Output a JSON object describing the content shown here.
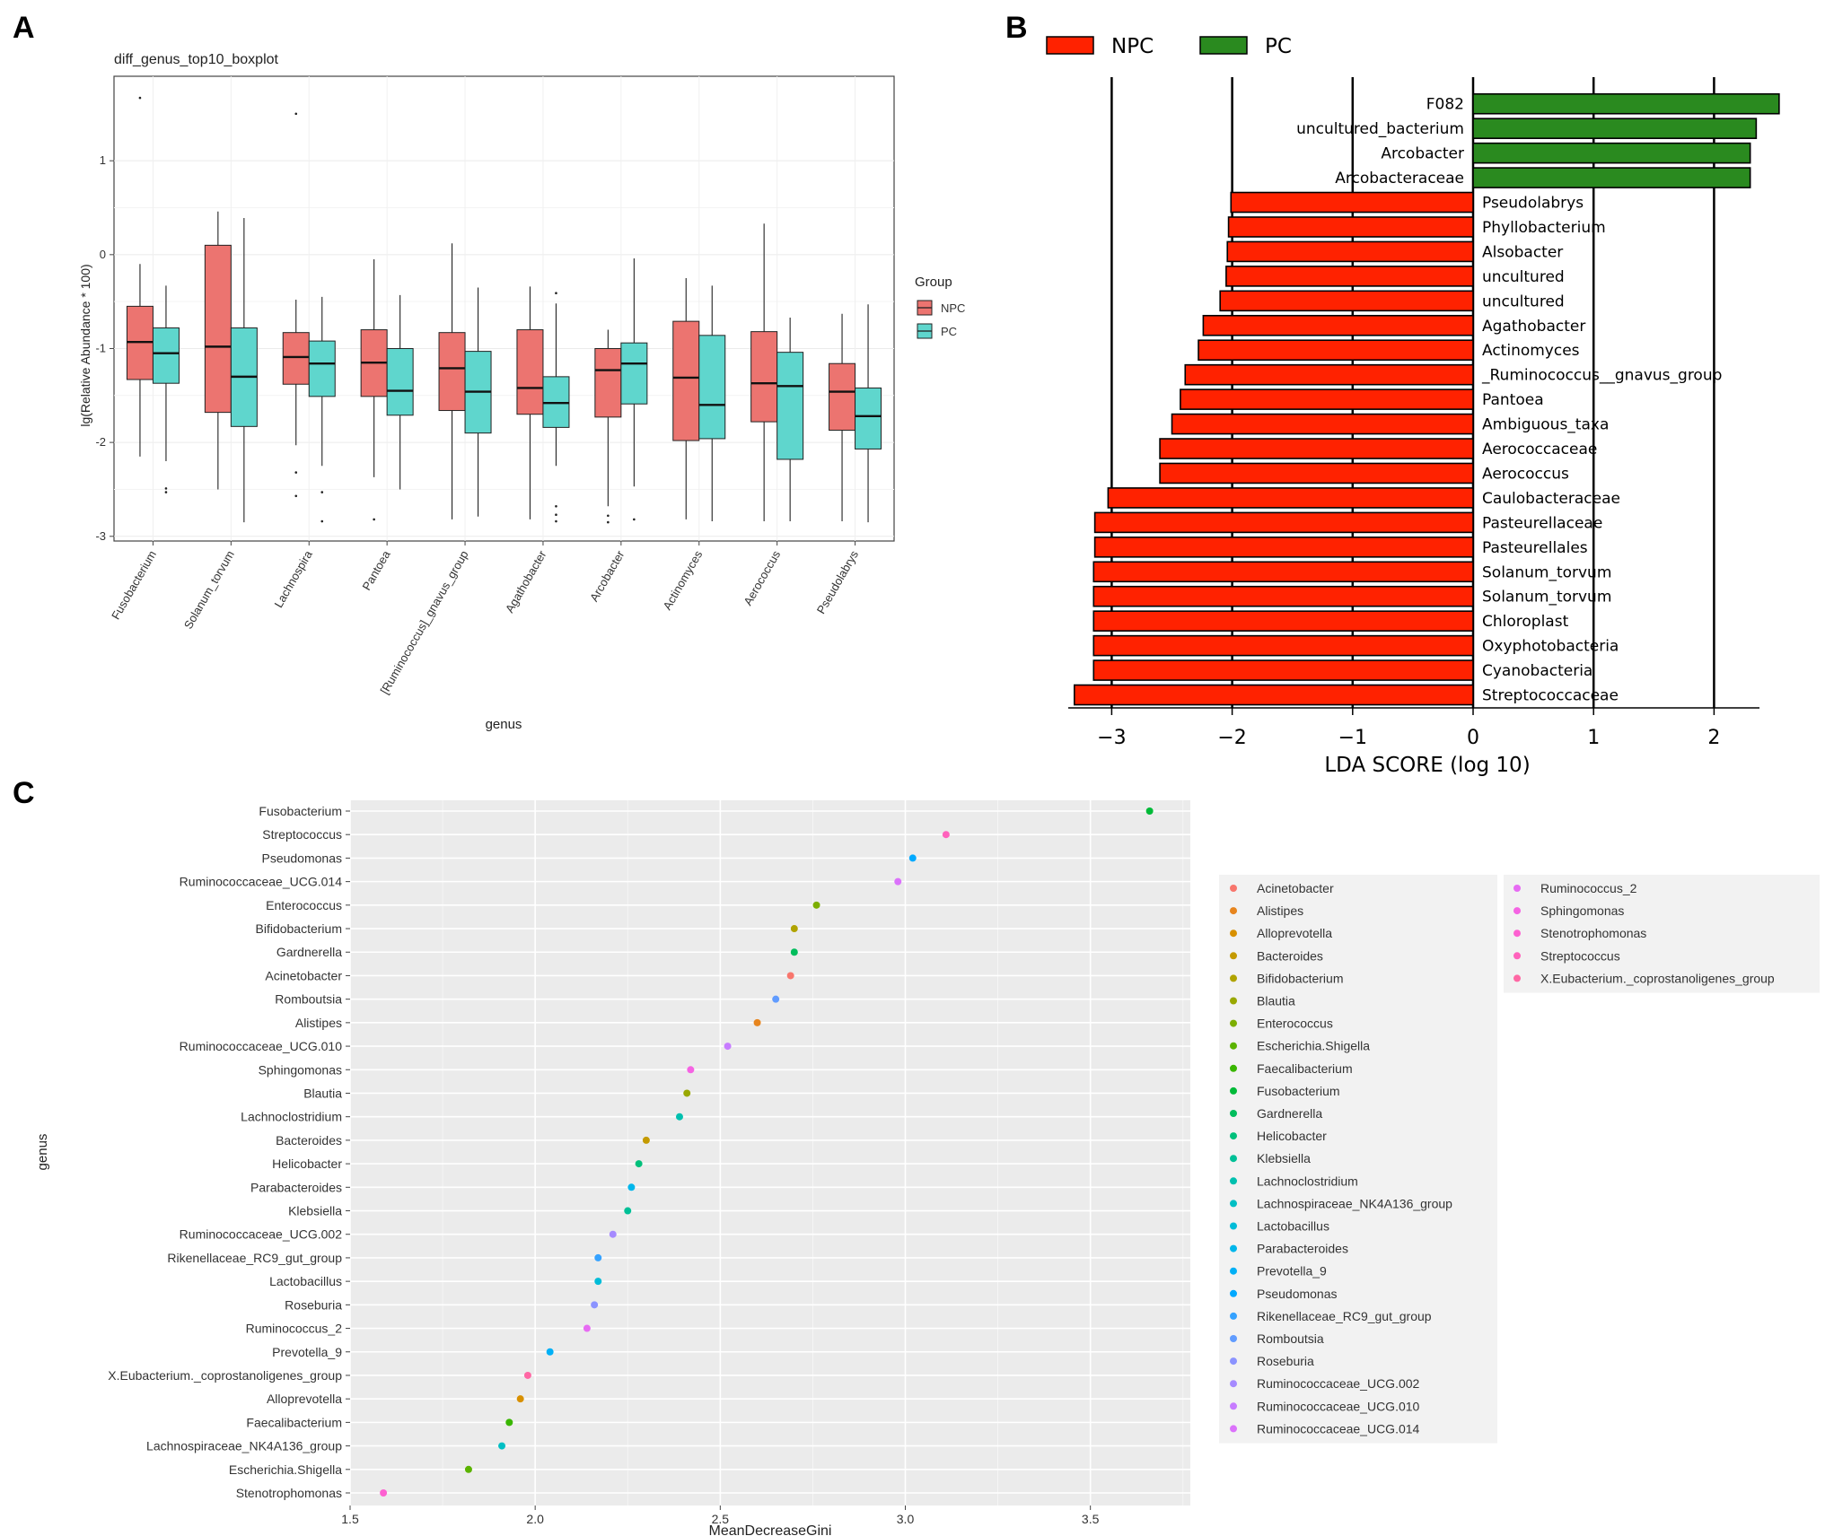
{
  "panel_labels": [
    "A",
    "B",
    "C"
  ],
  "colors": {
    "npc_box": "#ec7470",
    "pc_box": "#5fd6cd",
    "lda_npc": "#ff2200",
    "lda_pc": "#2a8a1f",
    "panel_bg": "#ebebeb",
    "grid": "#ffffff"
  },
  "chart_data": [
    {
      "type": "boxplot",
      "title": "diff_genus_top10_boxplot",
      "xlabel": "genus",
      "ylabel": "lg(Relative Abundance * 100)",
      "ylim": [
        -3.05,
        1.9
      ],
      "yticks": [
        1,
        0,
        -1,
        -2,
        -3
      ],
      "ytick_labels": [
        "1",
        "0",
        "-1",
        "-2",
        "-3"
      ],
      "legend_title": "Group",
      "legend_position": "right",
      "groups": [
        "NPC",
        "PC"
      ],
      "categories": [
        "Fusobacterium",
        "Solanum_torvum",
        "Lachnospira",
        "Pantoea",
        "[Ruminococcus]_gnavus_group",
        "Agathobacter",
        "Arcobacter",
        "Actinomyces",
        "Aerococcus",
        "Pseudolabrys"
      ],
      "series": [
        {
          "name": "NPC",
          "boxes": [
            {
              "q1": -1.33,
              "median": -0.93,
              "q3": -0.55,
              "lower": -2.15,
              "upper": -0.1,
              "outliers": [
                1.67
              ]
            },
            {
              "q1": -1.68,
              "median": -0.98,
              "q3": 0.1,
              "lower": -2.5,
              "upper": 0.46,
              "outliers": []
            },
            {
              "q1": -1.38,
              "median": -1.09,
              "q3": -0.83,
              "lower": -2.03,
              "upper": -0.48,
              "outliers": [
                1.5,
                -2.32,
                -2.57
              ]
            },
            {
              "q1": -1.51,
              "median": -1.15,
              "q3": -0.8,
              "lower": -2.37,
              "upper": -0.05,
              "outliers": [
                -2.82
              ]
            },
            {
              "q1": -1.66,
              "median": -1.21,
              "q3": -0.83,
              "lower": -2.82,
              "upper": 0.12,
              "outliers": []
            },
            {
              "q1": -1.7,
              "median": -1.42,
              "q3": -0.8,
              "lower": -2.82,
              "upper": -0.34,
              "outliers": []
            },
            {
              "q1": -1.73,
              "median": -1.23,
              "q3": -1.0,
              "lower": -2.68,
              "upper": -0.8,
              "outliers": [
                -2.78,
                -2.85
              ]
            },
            {
              "q1": -1.98,
              "median": -1.31,
              "q3": -0.71,
              "lower": -2.82,
              "upper": -0.25,
              "outliers": []
            },
            {
              "q1": -1.78,
              "median": -1.37,
              "q3": -0.82,
              "lower": -2.84,
              "upper": 0.33,
              "outliers": []
            },
            {
              "q1": -1.87,
              "median": -1.46,
              "q3": -1.16,
              "lower": -2.84,
              "upper": -0.63,
              "outliers": []
            }
          ]
        },
        {
          "name": "PC",
          "boxes": [
            {
              "q1": -1.37,
              "median": -1.05,
              "q3": -0.78,
              "lower": -2.2,
              "upper": -0.33,
              "outliers": [
                -2.49,
                -2.53
              ]
            },
            {
              "q1": -1.83,
              "median": -1.3,
              "q3": -0.78,
              "lower": -2.85,
              "upper": 0.39,
              "outliers": []
            },
            {
              "q1": -1.51,
              "median": -1.16,
              "q3": -0.92,
              "lower": -2.25,
              "upper": -0.45,
              "outliers": [
                -2.53,
                -2.84
              ]
            },
            {
              "q1": -1.71,
              "median": -1.45,
              "q3": -1.0,
              "lower": -2.5,
              "upper": -0.43,
              "outliers": []
            },
            {
              "q1": -1.9,
              "median": -1.46,
              "q3": -1.03,
              "lower": -2.79,
              "upper": -0.35,
              "outliers": []
            },
            {
              "q1": -1.84,
              "median": -1.58,
              "q3": -1.3,
              "lower": -2.25,
              "upper": -0.52,
              "outliers": [
                -0.41,
                -2.68,
                -2.77,
                -2.84
              ]
            },
            {
              "q1": -1.59,
              "median": -1.16,
              "q3": -0.94,
              "lower": -2.47,
              "upper": -0.04,
              "outliers": [
                -2.82
              ]
            },
            {
              "q1": -1.96,
              "median": -1.6,
              "q3": -0.86,
              "lower": -2.84,
              "upper": -0.33,
              "outliers": []
            },
            {
              "q1": -2.18,
              "median": -1.4,
              "q3": -1.04,
              "lower": -2.84,
              "upper": -0.67,
              "outliers": []
            },
            {
              "q1": -2.07,
              "median": -1.72,
              "q3": -1.42,
              "lower": -2.85,
              "upper": -0.53,
              "outliers": []
            }
          ]
        }
      ]
    },
    {
      "type": "bar",
      "orientation": "horizontal",
      "xlabel": "LDA SCORE (log 10)",
      "xlim": [
        -3.35,
        2.6
      ],
      "xticks": [
        -3,
        -2,
        -1,
        0,
        1,
        2
      ],
      "xtick_labels": [
        "−3",
        "−2",
        "−1",
        "0",
        "1",
        "2"
      ],
      "legend": [
        {
          "name": "NPC",
          "color": "#ff2200"
        },
        {
          "name": "PC",
          "color": "#2a8a1f"
        }
      ],
      "legend_position": "top-left",
      "categories": [
        "F082",
        "uncultured_bacterium",
        "Arcobacter",
        "Arcobacteraceae",
        "Pseudolabrys",
        "Phyllobacterium",
        "Alsobacter",
        "uncultured",
        "uncultured",
        "Agathobacter",
        "Actinomyces",
        "_Ruminococcus__gnavus_group",
        "Pantoea",
        "Ambiguous_taxa",
        "Aerococcaceae",
        "Aerococcus",
        "Caulobacteraceae",
        "Pasteurellaceae",
        "Pasteurellales",
        "Solanum_torvum",
        "Solanum_torvum",
        "Chloroplast",
        "Oxyphotobacteria",
        "Cyanobacteria",
        "Streptococcaceae"
      ],
      "groups": [
        "PC",
        "PC",
        "PC",
        "PC",
        "NPC",
        "NPC",
        "NPC",
        "NPC",
        "NPC",
        "NPC",
        "NPC",
        "NPC",
        "NPC",
        "NPC",
        "NPC",
        "NPC",
        "NPC",
        "NPC",
        "NPC",
        "NPC",
        "NPC",
        "NPC",
        "NPC",
        "NPC",
        "NPC"
      ],
      "values": [
        2.54,
        2.35,
        2.3,
        2.3,
        -2.01,
        -2.03,
        -2.04,
        -2.05,
        -2.1,
        -2.24,
        -2.28,
        -2.39,
        -2.43,
        -2.5,
        -2.6,
        -2.6,
        -3.03,
        -3.14,
        -3.14,
        -3.15,
        -3.15,
        -3.15,
        -3.15,
        -3.15,
        -3.31
      ]
    },
    {
      "type": "scatter",
      "xlabel": "MeanDecreaseGini",
      "ylabel": "genus",
      "xlim": [
        1.5,
        3.77
      ],
      "xticks": [
        1.5,
        2.0,
        2.5,
        3.0,
        3.5
      ],
      "xtick_labels": [
        "1.5",
        "2.0",
        "2.5",
        "3.0",
        "3.5"
      ],
      "grid": true,
      "legend_position": "right",
      "categories": [
        "Fusobacterium",
        "Streptococcus",
        "Pseudomonas",
        "Ruminococcaceae_UCG.014",
        "Enterococcus",
        "Bifidobacterium",
        "Gardnerella",
        "Acinetobacter",
        "Romboutsia",
        "Alistipes",
        "Ruminococcaceae_UCG.010",
        "Sphingomonas",
        "Blautia",
        "Lachnoclostridium",
        "Bacteroides",
        "Helicobacter",
        "Parabacteroides",
        "Klebsiella",
        "Ruminococcaceae_UCG.002",
        "Rikenellaceae_RC9_gut_group",
        "Lactobacillus",
        "Roseburia",
        "Ruminococcus_2",
        "Prevotella_9",
        "X.Eubacterium._coprostanoligenes_group",
        "Alloprevotella",
        "Faecalibacterium",
        "Lachnospiraceae_NK4A136_group",
        "Escherichia.Shigella",
        "Stenotrophomonas"
      ],
      "values": [
        3.66,
        3.11,
        3.02,
        2.98,
        2.76,
        2.7,
        2.7,
        2.69,
        2.65,
        2.6,
        2.52,
        2.42,
        2.41,
        2.39,
        2.3,
        2.28,
        2.26,
        2.25,
        2.21,
        2.17,
        2.17,
        2.16,
        2.14,
        2.04,
        1.98,
        1.96,
        1.93,
        1.91,
        1.82,
        1.59
      ],
      "legend_entries": [
        {
          "name": "Acinetobacter",
          "color": "#f8766d"
        },
        {
          "name": "Alistipes",
          "color": "#e7851e"
        },
        {
          "name": "Alloprevotella",
          "color": "#d89000"
        },
        {
          "name": "Bacteroides",
          "color": "#c49a00"
        },
        {
          "name": "Bifidobacterium",
          "color": "#b0a300"
        },
        {
          "name": "Blautia",
          "color": "#99a800"
        },
        {
          "name": "Enterococcus",
          "color": "#7cae00"
        },
        {
          "name": "Escherichia.Shigella",
          "color": "#5bb300"
        },
        {
          "name": "Faecalibacterium",
          "color": "#39b600"
        },
        {
          "name": "Fusobacterium",
          "color": "#00ba38"
        },
        {
          "name": "Gardnerella",
          "color": "#00bd5c"
        },
        {
          "name": "Helicobacter",
          "color": "#00c07b"
        },
        {
          "name": "Klebsiella",
          "color": "#00c097"
        },
        {
          "name": "Lachnoclostridium",
          "color": "#00c0af"
        },
        {
          "name": "Lachnospiraceae_NK4A136_group",
          "color": "#00bfc4"
        },
        {
          "name": "Lactobacillus",
          "color": "#00bcd8"
        },
        {
          "name": "Parabacteroides",
          "color": "#00b6eb"
        },
        {
          "name": "Prevotella_9",
          "color": "#00b0f6"
        },
        {
          "name": "Pseudomonas",
          "color": "#00a9ff"
        },
        {
          "name": "Rikenellaceae_RC9_gut_group",
          "color": "#35a2ff"
        },
        {
          "name": "Romboutsia",
          "color": "#619cff"
        },
        {
          "name": "Roseburia",
          "color": "#8b93ff"
        },
        {
          "name": "Ruminococcaceae_UCG.002",
          "color": "#a58aff"
        },
        {
          "name": "Ruminococcaceae_UCG.010",
          "color": "#c77cff"
        },
        {
          "name": "Ruminococcaceae_UCG.014",
          "color": "#db72fb"
        },
        {
          "name": "Ruminococcus_2",
          "color": "#e76bf3"
        },
        {
          "name": "Sphingomonas",
          "color": "#f564e3"
        },
        {
          "name": "Stenotrophomonas",
          "color": "#fd61d1"
        },
        {
          "name": "Streptococcus",
          "color": "#ff62bc"
        },
        {
          "name": "X.Eubacterium._coprostanoligenes_group",
          "color": "#ff67a4"
        }
      ]
    }
  ]
}
